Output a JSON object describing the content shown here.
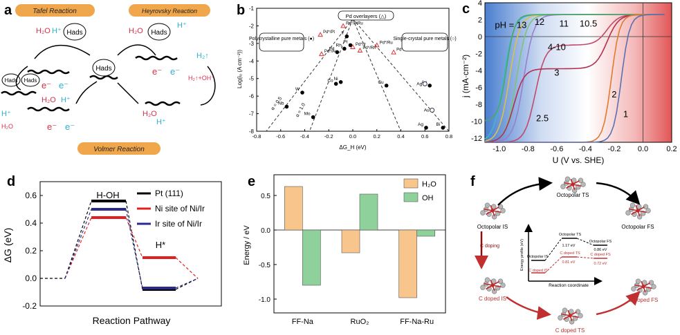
{
  "panel_labels": {
    "a": "a",
    "b": "b",
    "c": "c",
    "d": "d",
    "e": "e",
    "f": "f"
  },
  "panel_a": {
    "tafel_title": "Tafel Reaction",
    "heyrovsky_title": "Heyrovsky Reaction",
    "volmer_title": "Volmer Reaction",
    "hads": "Hads",
    "h2o": "H₂O",
    "hplus": "H⁺",
    "eminus": "e⁻",
    "h2": "H₂↑",
    "h2_oh": "H₂↑+OH⁻",
    "title_color": "#f0a64a"
  },
  "chart_data": [
    {
      "id": "b",
      "type": "scatter",
      "xlabel": "ΔG_H (eV)",
      "ylabel": "Log(i₀ (A cm⁻²))",
      "xlim": [
        -0.8,
        0.8
      ],
      "ylim": [
        -8,
        -1
      ],
      "xticks": [
        "-0.8",
        "-0.6",
        "-0.4",
        "-0.2",
        "0.0",
        "0.2",
        "0.4",
        "0.6",
        "0.8"
      ],
      "yticks": [
        "-1",
        "-2",
        "-3",
        "-4",
        "-5",
        "-6",
        "-7",
        "-8"
      ],
      "filled_points": [
        {
          "label": "Re",
          "x": -0.5,
          "y": -2.8
        },
        {
          "label": "W",
          "x": -0.42,
          "y": -5.8
        },
        {
          "label": "Nb",
          "x": -0.55,
          "y": -6.6
        },
        {
          "label": "Mo",
          "x": -0.33,
          "y": -7.2
        },
        {
          "label": "Co",
          "x": -0.14,
          "y": -5.3
        },
        {
          "label": "Ni",
          "x": -0.1,
          "y": -5.2
        },
        {
          "label": "Pd",
          "x": -0.13,
          "y": -3.5
        },
        {
          "label": "Rh",
          "x": -0.07,
          "y": -3.3
        },
        {
          "label": "Ir",
          "x": -0.05,
          "y": -2.6
        },
        {
          "label": "Pt",
          "x": -0.02,
          "y": -3.1
        },
        {
          "label": "Cu",
          "x": 0.28,
          "y": -5.4
        },
        {
          "label": "Ag",
          "x": 0.61,
          "y": -7.8
        },
        {
          "label": "Au",
          "x": 0.64,
          "y": -5.4
        },
        {
          "label": "Bi",
          "x": 0.75,
          "y": -7.8
        }
      ],
      "triangle_points": [
        {
          "label": "Pd*/Pt",
          "x": -0.27,
          "y": -2.5
        },
        {
          "label": "Pd*/PtRu",
          "x": -0.08,
          "y": -2.0
        },
        {
          "label": "Pd*/Au",
          "x": -0.26,
          "y": -3.6
        },
        {
          "label": "Pd*/Ir",
          "x": 0.0,
          "y": -3.2
        },
        {
          "label": "Pd*/Ru",
          "x": 0.2,
          "y": -3.1
        },
        {
          "label": "Pd*/Rh",
          "x": 0.06,
          "y": -3.4
        },
        {
          "label": "Pd*/Re",
          "x": 0.34,
          "y": -3.5
        }
      ],
      "open_points": [
        {
          "label": "Ag",
          "x": 0.6,
          "y": -5.3
        },
        {
          "label": "Au",
          "x": 0.66,
          "y": -6.8
        }
      ],
      "annotations": {
        "poly": "Polycrystalline pure metals (●)",
        "overlayer": "Pd overlayers (△)",
        "single": "Single-crystal pure metals (○)",
        "a05": "α = 0.5",
        "a10": "α = 1.0"
      }
    },
    {
      "id": "c",
      "type": "line",
      "xlabel": "U (V vs. SHE)",
      "ylabel": "j (mA·cm⁻²)",
      "xlim": [
        -1.1,
        0.2
      ],
      "ylim": [
        -12.5,
        4
      ],
      "xticks": [
        "-1.0",
        "-0.8",
        "-0.6",
        "-0.4",
        "-0.2",
        "0.0",
        "0.2"
      ],
      "yticks": [
        "4",
        "2",
        "0",
        "-2",
        "-4",
        "-6",
        "-8",
        "-10",
        "-12"
      ],
      "ph_label": "pH = 13",
      "series": [
        {
          "name": "pH = 13",
          "color": "#3fb7c7",
          "onset": -0.97,
          "plateau": 1.9
        },
        {
          "name": "12",
          "color": "#d7c34a",
          "onset": -0.93,
          "plateau": 1.6
        },
        {
          "name": "11",
          "color": "#7fc37a",
          "onset": -0.88,
          "plateau": 1.3
        },
        {
          "name": "10.5",
          "color": "#9a7fc9",
          "onset": -0.83,
          "plateau": 1.0
        },
        {
          "name": "4-10",
          "color": "#c0486a",
          "onset": -0.75,
          "plateau": -1.0
        },
        {
          "name": "3",
          "color": "#b03050",
          "onset": -0.9,
          "plateau": -3.8
        },
        {
          "name": "2.5",
          "color": "#4aa86a",
          "onset": -0.95,
          "plateau": -10.0
        },
        {
          "name": "2",
          "color": "#e07a2e",
          "onset": -0.22,
          "plateau": -12.5
        },
        {
          "name": "1",
          "color": "#5a6fb0",
          "onset": -0.15,
          "plateau": -12.5
        }
      ]
    },
    {
      "id": "d",
      "type": "line",
      "xlabel": "Reaction Pathway",
      "ylabel": "ΔG (eV)",
      "ylim": [
        -0.2,
        0.7
      ],
      "yticks": [
        "0.6",
        "0.4",
        "0.2",
        "0.0",
        "-0.2"
      ],
      "state_labels": [
        "H-OH",
        "H*"
      ],
      "series": [
        {
          "name": "Pt (111)",
          "color": "#000000",
          "values": [
            0,
            0.56,
            -0.08,
            0
          ]
        },
        {
          "name": "Ni site of Ni/Ir",
          "color": "#e02020",
          "values": [
            0,
            0.44,
            0.15,
            0
          ]
        },
        {
          "name": "Ir site of Ni/Ir",
          "color": "#2a2a8a",
          "values": [
            0,
            0.5,
            -0.07,
            0
          ]
        }
      ]
    },
    {
      "id": "e",
      "type": "bar",
      "ylabel": "Energy / eV",
      "categories": [
        "FF-Na",
        "RuO₂",
        "FF-Na-Ru"
      ],
      "ylim": [
        -1.2,
        0.8
      ],
      "yticks": [
        "0.5",
        "0.0",
        "-0.5",
        "-1.0"
      ],
      "series": [
        {
          "name": "H₂O",
          "color": "#f8c58c",
          "values": [
            0.63,
            -0.33,
            -0.98
          ]
        },
        {
          "name": "OH",
          "color": "#8fd19a",
          "values": [
            -0.8,
            0.52,
            -0.09
          ]
        }
      ]
    }
  ],
  "panel_f": {
    "octo_ts": "Octopolar TS",
    "octo_is": "Octopolar IS",
    "octo_fs": "Octopolar FS",
    "c_doping": "C doping",
    "c_doped_is": "C doped IS",
    "c_doped_ts": "C doped TS",
    "c_doped_fs": "C doped FS",
    "ylabel": "Energy profile (eV)",
    "xlabel": "Reaction coordinate",
    "e1": "1.17 eV",
    "e2": "0.86 eV",
    "e3": "0.81 eV",
    "e4": "0.72 eV",
    "inset_octo_is": "Octopolar IS",
    "inset_octo_ts": "Octopolar TS",
    "inset_octo_fs": "Octopolar FS",
    "inset_c_is": "C doped IS",
    "inset_c_ts": "C doped TS",
    "inset_c_fs": "C doped FS"
  }
}
